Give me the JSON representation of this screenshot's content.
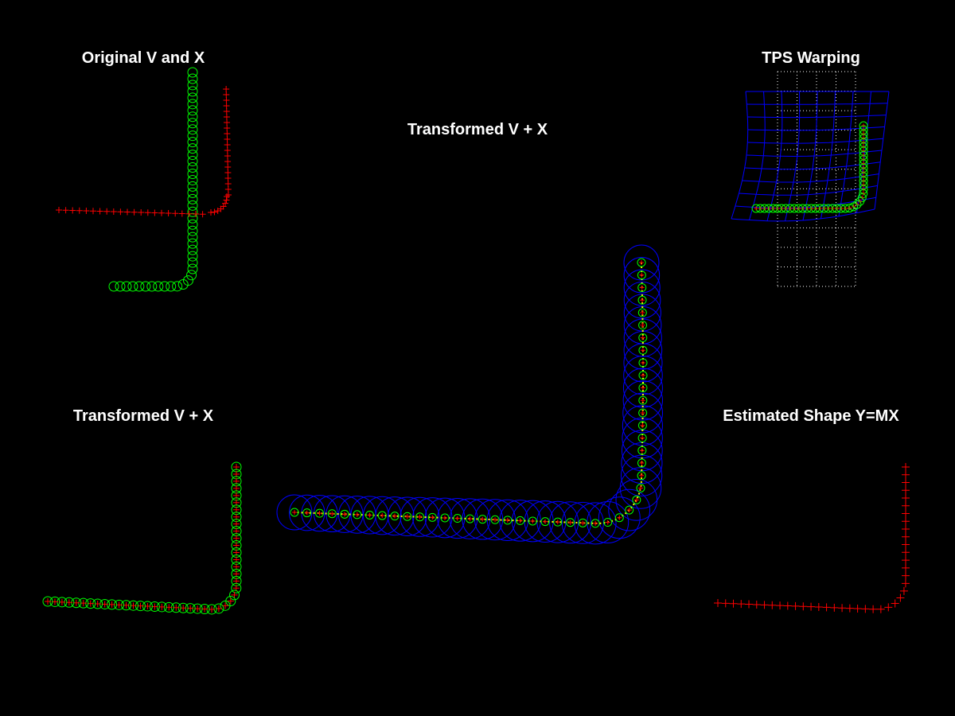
{
  "colors": {
    "background": "#000000",
    "title": "#ffffff",
    "point_set_v": "#00ff00",
    "point_set_x": "#ff0000",
    "warped_grid": "#0000ff",
    "reference_grid": "#ffffff",
    "correspondence_circles": "#0000ff",
    "correspondence_line": "#ffff00"
  },
  "panels": {
    "original": {
      "title": "Original V and X",
      "markers": [
        "green circles",
        "red plus"
      ]
    },
    "tps": {
      "title": "TPS Warping",
      "markers": [
        "green circles",
        "red plus",
        "blue warped grid",
        "white dotted grid"
      ]
    },
    "center": {
      "title": "Transformed V + X",
      "markers": [
        "green circles",
        "red plus",
        "blue circles",
        "yellow dots"
      ]
    },
    "transformed_small": {
      "title": "Transformed V + X",
      "markers": [
        "green circles",
        "red plus"
      ]
    },
    "estimated": {
      "title": "Estimated Shape Y=MX",
      "markers": [
        "red plus"
      ]
    }
  }
}
